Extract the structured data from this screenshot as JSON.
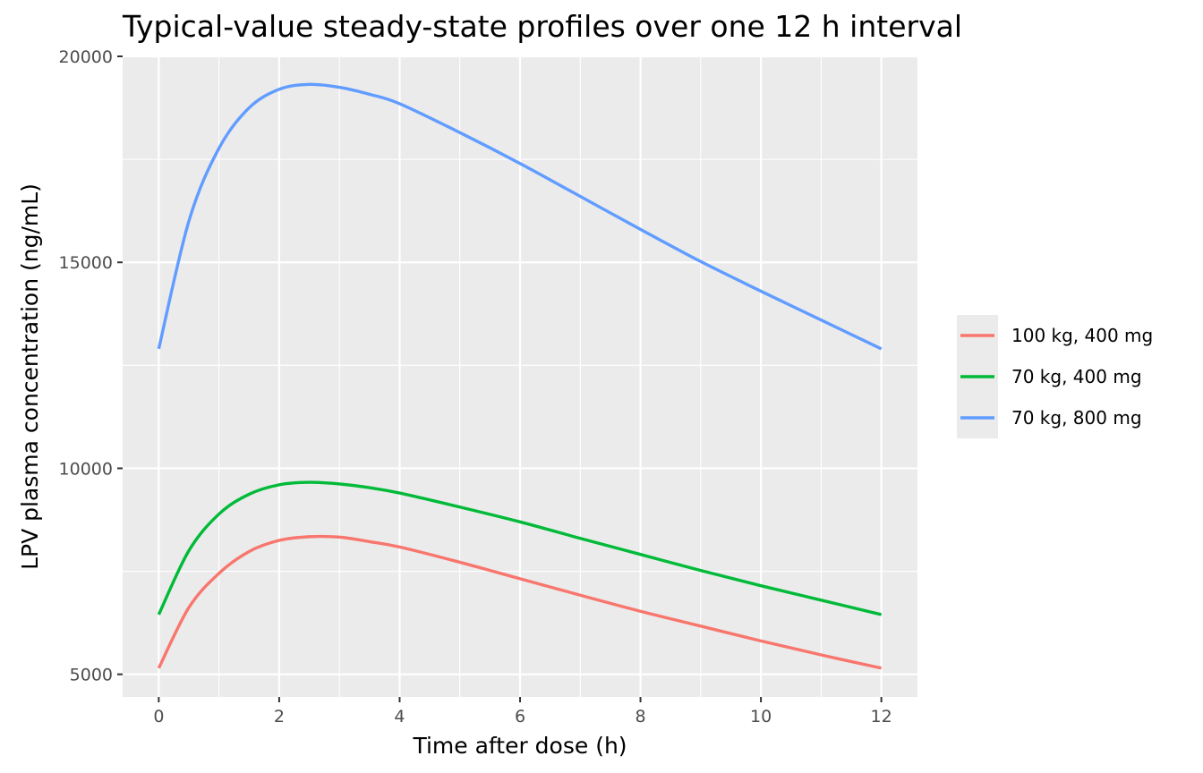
{
  "chart_data": {
    "type": "line",
    "title": "Typical-value steady-state profiles over one 12 h interval",
    "xlabel": "Time after dose (h)",
    "ylabel": "LPV plasma concentration (ng/mL)",
    "xlim": [
      -0.6,
      12.6
    ],
    "ylim": [
      4450,
      20000
    ],
    "x_ticks": [
      0,
      2,
      4,
      6,
      8,
      10,
      12
    ],
    "y_ticks": [
      5000,
      10000,
      15000,
      20000
    ],
    "grid": true,
    "legend_position": "right",
    "x": [
      0,
      0.5,
      1,
      1.5,
      2,
      2.5,
      3,
      3.5,
      4,
      5,
      6,
      7,
      8,
      9,
      10,
      11,
      12
    ],
    "series": [
      {
        "name": "100 kg, 400 mg",
        "color": "#F8766D",
        "values": [
          5150,
          6620,
          7450,
          7980,
          8250,
          8340,
          8330,
          8220,
          8090,
          7720,
          7320,
          6920,
          6530,
          6170,
          5810,
          5470,
          5150
        ]
      },
      {
        "name": "70 kg, 400 mg",
        "color": "#00BA38",
        "values": [
          6450,
          8000,
          8890,
          9370,
          9600,
          9660,
          9620,
          9530,
          9400,
          9060,
          8700,
          8300,
          7910,
          7520,
          7150,
          6800,
          6450
        ]
      },
      {
        "name": "70 kg, 800 mg",
        "color": "#619CFF",
        "values": [
          12900,
          16000,
          17770,
          18750,
          19200,
          19320,
          19250,
          19080,
          18850,
          18150,
          17400,
          16600,
          15800,
          15020,
          14300,
          13600,
          12900
        ]
      }
    ]
  }
}
